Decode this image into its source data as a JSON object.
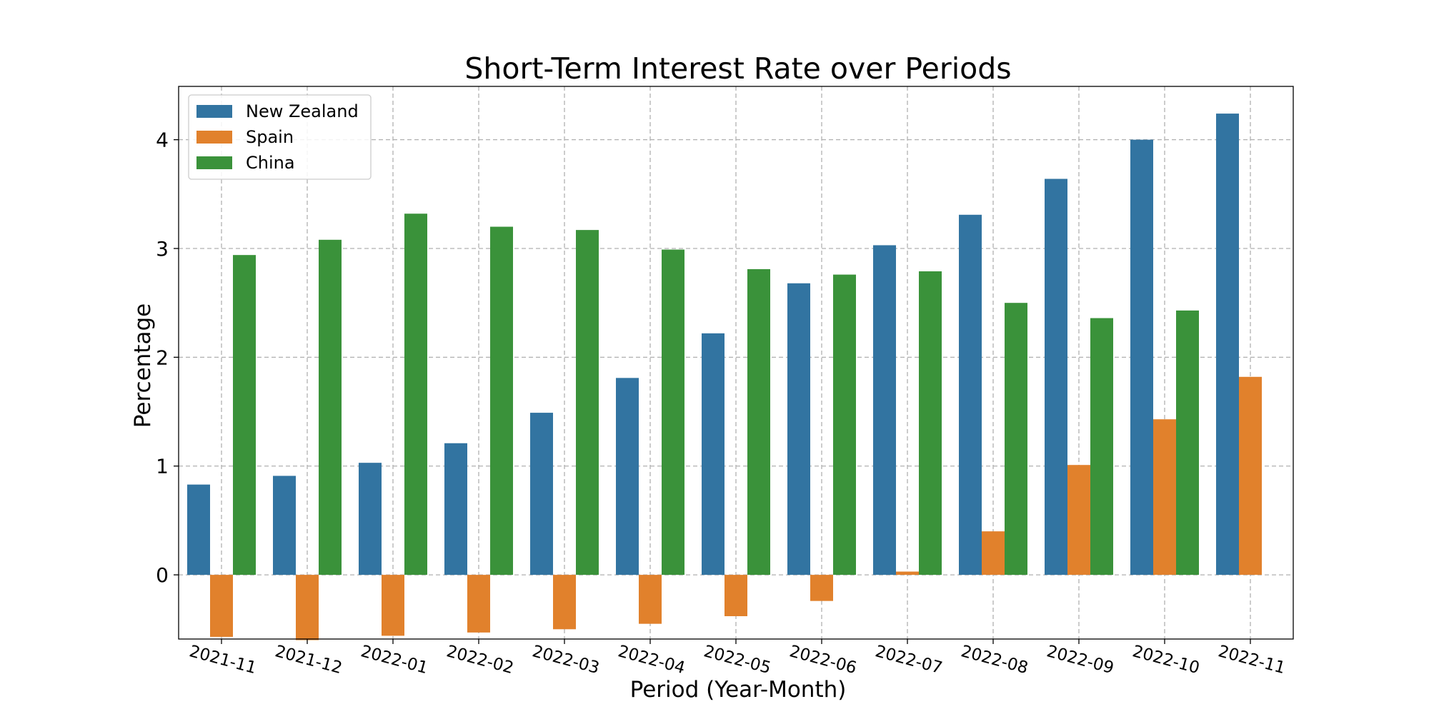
{
  "chart_data": {
    "type": "bar",
    "title": "Short-Term Interest Rate over Periods",
    "xlabel": "Period (Year-Month)",
    "ylabel": "Percentage",
    "categories": [
      "2021-11",
      "2021-12",
      "2022-01",
      "2022-02",
      "2022-03",
      "2022-04",
      "2022-05",
      "2022-06",
      "2022-07",
      "2022-08",
      "2022-09",
      "2022-10",
      "2022-11"
    ],
    "series": [
      {
        "name": "New Zealand",
        "color": "#3274a1",
        "values": [
          0.83,
          0.91,
          1.03,
          1.21,
          1.49,
          1.81,
          2.22,
          2.68,
          3.03,
          3.31,
          3.64,
          4.0,
          4.24
        ]
      },
      {
        "name": "Spain",
        "color": "#e1812c",
        "values": [
          -0.57,
          -0.6,
          -0.56,
          -0.53,
          -0.5,
          -0.45,
          -0.38,
          -0.24,
          0.03,
          0.4,
          1.01,
          1.43,
          1.82
        ]
      },
      {
        "name": "China",
        "color": "#3a923a",
        "values": [
          2.94,
          3.08,
          3.32,
          3.2,
          3.17,
          2.99,
          2.81,
          2.76,
          2.79,
          2.5,
          2.36,
          2.43,
          0
        ]
      }
    ],
    "ylim": [
      -0.59,
      4.49
    ],
    "yticks": [
      0,
      1,
      2,
      3,
      4
    ],
    "grid": true,
    "legend_position": "top-left"
  }
}
